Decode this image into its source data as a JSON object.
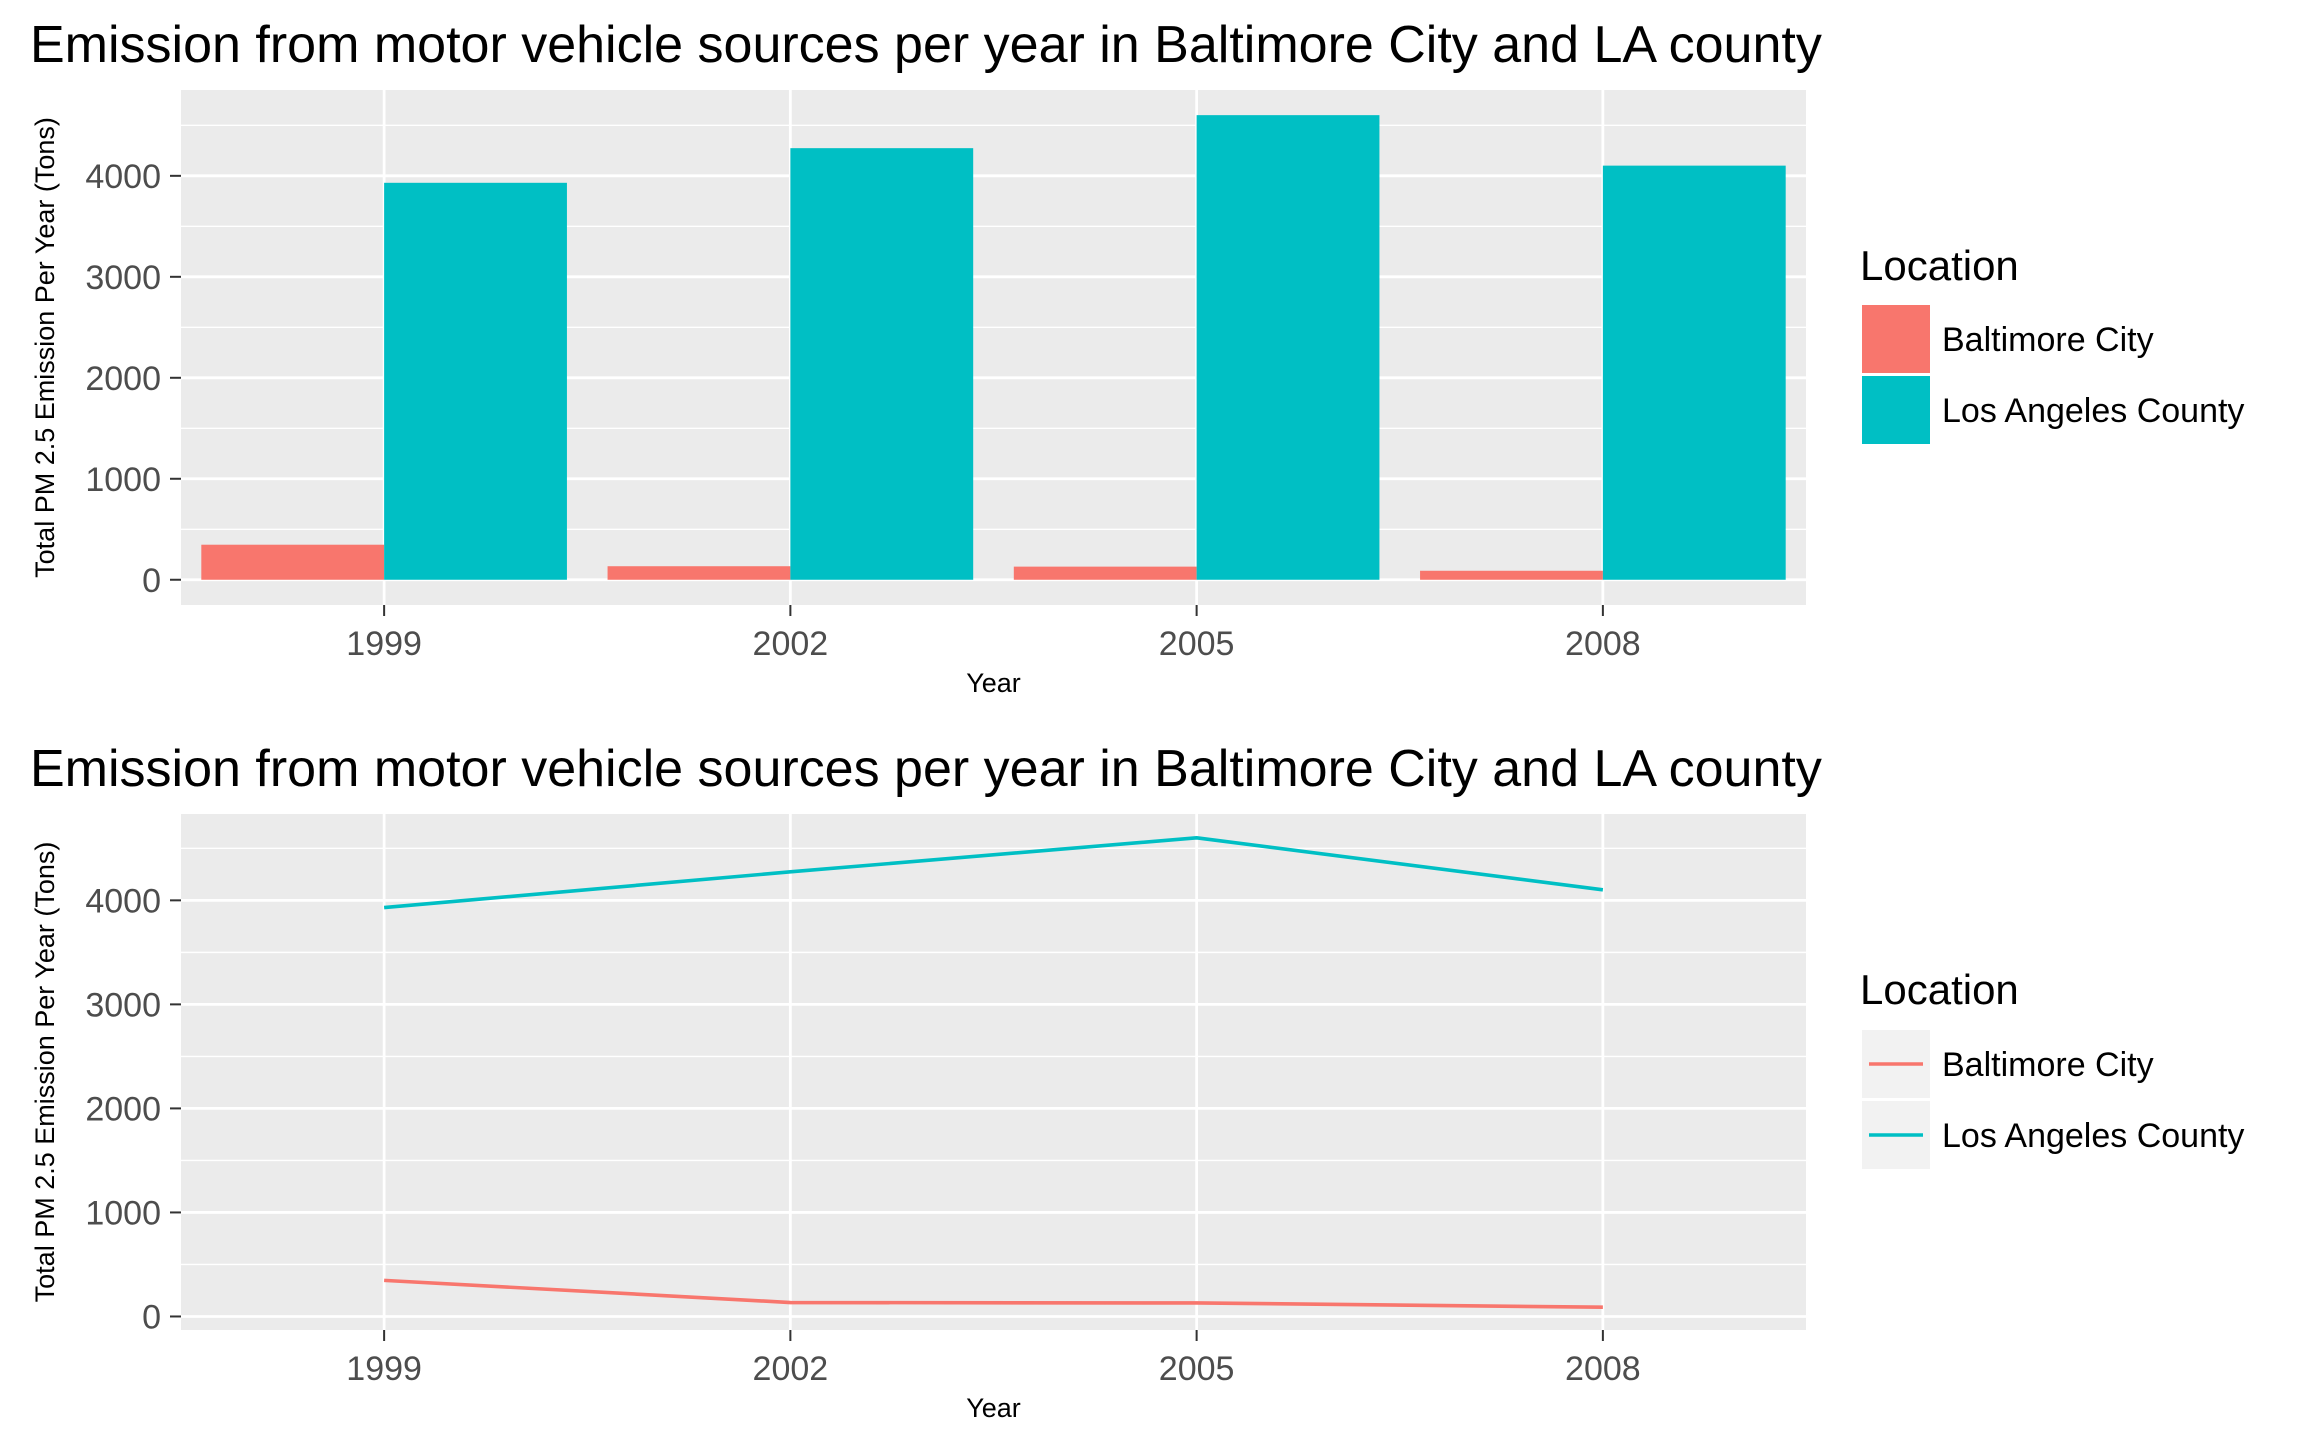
{
  "chart_data": [
    {
      "type": "bar",
      "title": "Emission from motor vehicle sources per year in Baltimore City and LA county",
      "xlabel": "Year",
      "ylabel": "Total PM 2.5 Emission Per Year (Tons)",
      "categories": [
        "1999",
        "2002",
        "2005",
        "2008"
      ],
      "yticks": [
        "0",
        "1000",
        "2000",
        "3000",
        "4000"
      ],
      "ylim": [
        -250,
        4850
      ],
      "grid": true,
      "legend": {
        "title": "Location",
        "position": "right"
      },
      "series": [
        {
          "name": "Baltimore City",
          "color": "#F8766D",
          "values": [
            347,
            134,
            130,
            89
          ]
        },
        {
          "name": "Los Angeles County",
          "color": "#00BFC4",
          "values": [
            3931,
            4274,
            4601,
            4101
          ]
        }
      ]
    },
    {
      "type": "line",
      "title": "Emission from motor vehicle sources per year in Baltimore City and LA county",
      "xlabel": "Year",
      "ylabel": "Total PM 2.5 Emission Per Year (Tons)",
      "categories": [
        "1999",
        "2002",
        "2005",
        "2008"
      ],
      "yticks": [
        "0",
        "1000",
        "2000",
        "3000",
        "4000"
      ],
      "ylim": [
        -130,
        4830
      ],
      "grid": true,
      "legend": {
        "title": "Location",
        "position": "right"
      },
      "series": [
        {
          "name": "Baltimore City",
          "color": "#F8766D",
          "values": [
            347,
            134,
            130,
            89
          ]
        },
        {
          "name": "Los Angeles County",
          "color": "#00BFC4",
          "values": [
            3931,
            4274,
            4601,
            4101
          ]
        }
      ]
    }
  ]
}
